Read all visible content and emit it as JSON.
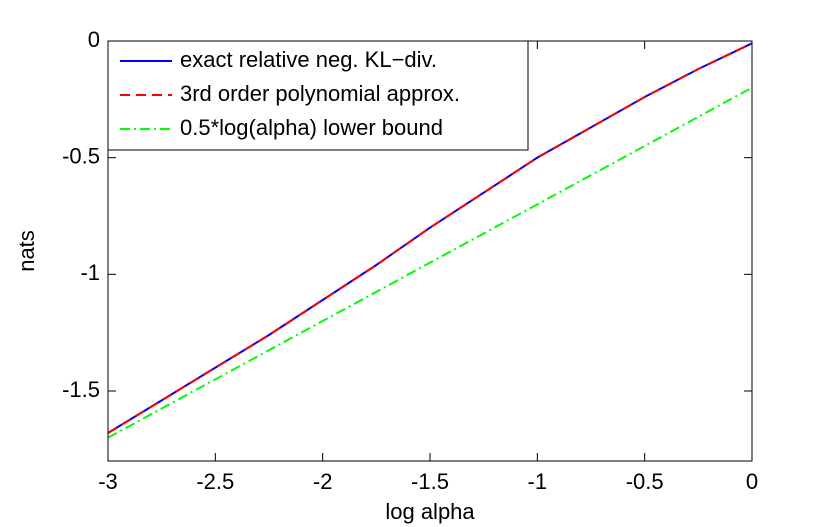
{
  "chart_data": {
    "type": "line",
    "x_label": "log alpha",
    "y_label": "nats",
    "x": [
      -3,
      -2.75,
      -2.5,
      -2.25,
      -2,
      -1.75,
      -1.5,
      -1.25,
      -1,
      -0.75,
      -0.5,
      -0.25,
      0
    ],
    "series": [
      {
        "name": "exact relative neg. KL−div.",
        "color": "#0000ff",
        "style": "solid",
        "values": [
          -1.68,
          -1.54,
          -1.4,
          -1.26,
          -1.11,
          -0.96,
          -0.8,
          -0.65,
          -0.5,
          -0.37,
          -0.24,
          -0.12,
          -0.01
        ]
      },
      {
        "name": "3rd order polynomial approx.",
        "color": "#ff0000",
        "style": "dashed",
        "values": [
          -1.68,
          -1.54,
          -1.4,
          -1.26,
          -1.11,
          -0.96,
          -0.8,
          -0.65,
          -0.5,
          -0.37,
          -0.24,
          -0.12,
          -0.01
        ]
      },
      {
        "name": "0.5*log(alpha) lower bound",
        "color": "#00ff00",
        "style": "dashdot",
        "values": [
          -1.7,
          -1.575,
          -1.45,
          -1.325,
          -1.2,
          -1.075,
          -0.95,
          -0.825,
          -0.7,
          -0.575,
          -0.45,
          -0.325,
          -0.2
        ]
      }
    ],
    "xlim": [
      -3,
      0
    ],
    "ylim": [
      -1.8,
      0
    ],
    "xticks": [
      -3,
      -2.5,
      -2,
      -1.5,
      -1,
      -0.5,
      0
    ],
    "yticks": [
      -1.5,
      -1,
      -0.5,
      0
    ],
    "grid": false,
    "legend": "upper-left"
  }
}
